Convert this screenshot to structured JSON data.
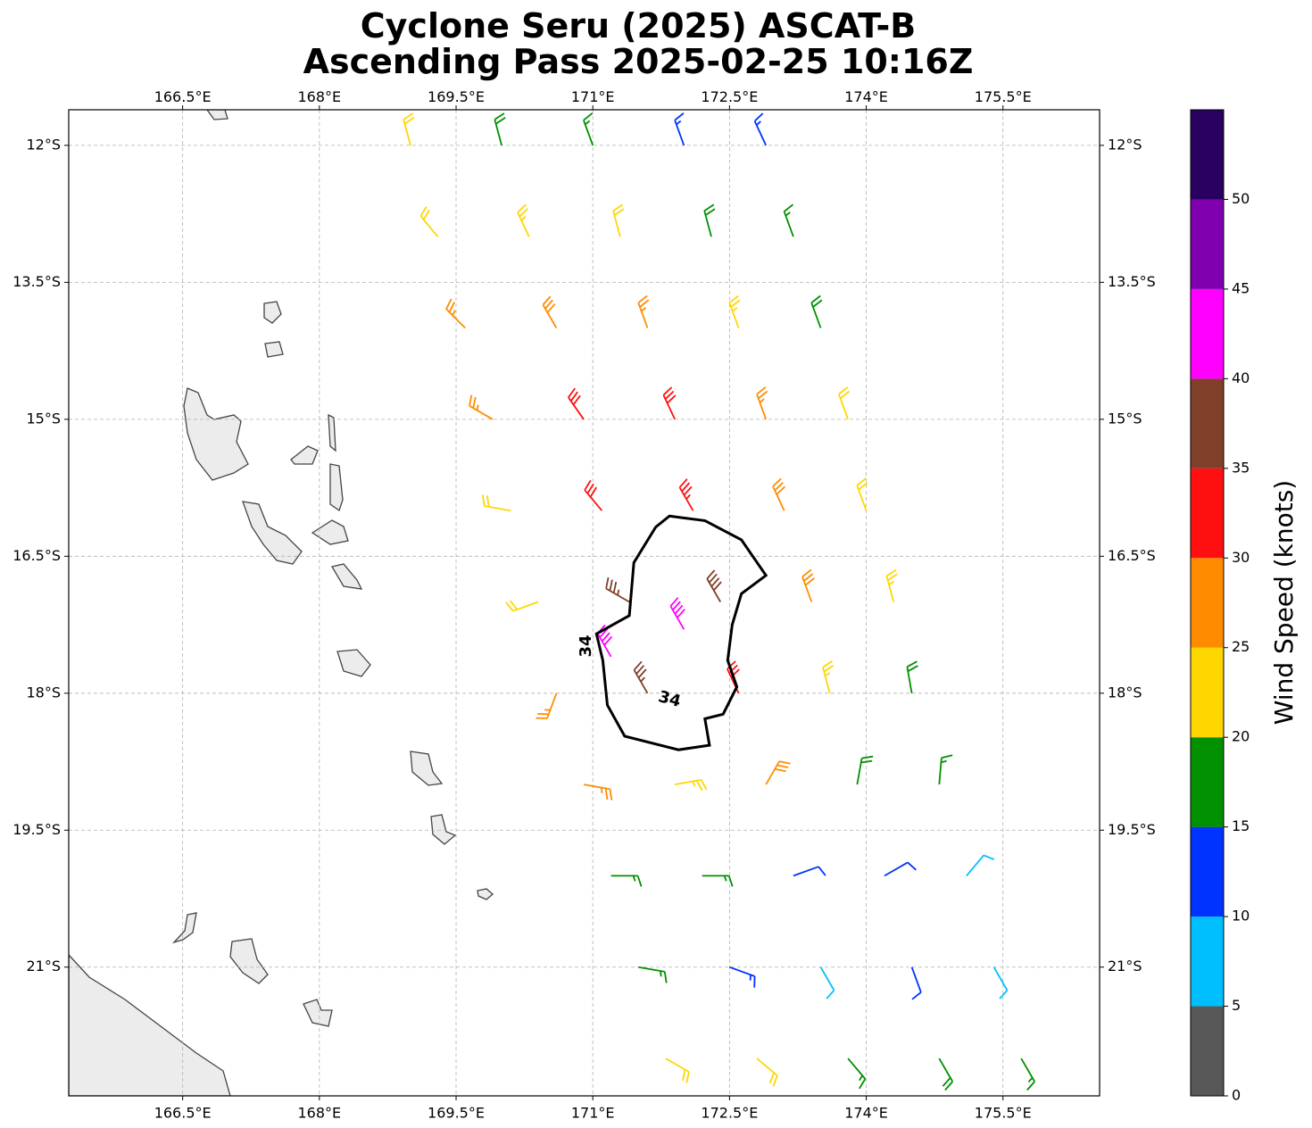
{
  "chart_data": {
    "type": "barbs",
    "title": "Cyclone Seru (2025) ASCAT-B",
    "subtitle": "Ascending Pass 2025-02-25 10:16Z",
    "xlim": [
      165.25,
      176.56
    ],
    "ylim": [
      -22.41,
      -11.61
    ],
    "grid": true,
    "xticks": [
      {
        "value": 166.5,
        "label": "166.5°E"
      },
      {
        "value": 168,
        "label": "168°E"
      },
      {
        "value": 169.5,
        "label": "169.5°E"
      },
      {
        "value": 171,
        "label": "171°E"
      },
      {
        "value": 172.5,
        "label": "172.5°E"
      },
      {
        "value": 174,
        "label": "174°E"
      },
      {
        "value": 175.5,
        "label": "175.5°E"
      }
    ],
    "yticks": [
      {
        "value": -12,
        "label": "12°S"
      },
      {
        "value": -13.5,
        "label": "13.5°S"
      },
      {
        "value": -15,
        "label": "15°S"
      },
      {
        "value": -16.5,
        "label": "16.5°S"
      },
      {
        "value": -18,
        "label": "18°S"
      },
      {
        "value": -19.5,
        "label": "19.5°S"
      },
      {
        "value": -21,
        "label": "21°S"
      }
    ],
    "barbs": {
      "lon": [
        169.0,
        170.0,
        171.0,
        172.0,
        172.9,
        169.3,
        170.3,
        171.3,
        172.3,
        173.2,
        169.6,
        170.6,
        171.6,
        172.6,
        173.5,
        169.9,
        170.9,
        171.9,
        172.9,
        173.8,
        170.1,
        171.1,
        172.1,
        173.1,
        174.0,
        170.4,
        171.4,
        172.4,
        173.4,
        174.3,
        170.6,
        171.6,
        172.6,
        173.6,
        174.5,
        170.9,
        171.9,
        172.9,
        173.9,
        174.8,
        171.2,
        172.2,
        173.2,
        174.2,
        175.1,
        171.5,
        172.5,
        173.5,
        174.5,
        175.4,
        171.8,
        172.8,
        173.8,
        174.8,
        175.7,
        171.2,
        172.0
      ],
      "lat": [
        -12,
        -12,
        -12,
        -12,
        -12,
        -13,
        -13,
        -13,
        -13,
        -13,
        -14,
        -14,
        -14,
        -14,
        -14,
        -15,
        -15,
        -15,
        -15,
        -15,
        -16,
        -16,
        -16,
        -16,
        -16,
        -17,
        -17,
        -17,
        -17,
        -17,
        -18,
        -18,
        -18,
        -18,
        -18,
        -19,
        -19,
        -19,
        -19,
        -19,
        -20,
        -20,
        -20,
        -20,
        -20,
        -21,
        -21,
        -21,
        -21,
        -21,
        -22,
        -22,
        -22,
        -22,
        -22,
        -17.6,
        -17.3
      ],
      "speed": [
        20,
        18,
        17,
        14,
        13,
        22,
        24,
        21,
        18,
        17,
        27,
        28,
        26,
        23,
        18,
        27,
        32,
        30,
        25,
        22,
        20,
        32,
        34,
        28,
        22,
        21,
        35,
        38,
        29,
        23,
        27,
        36,
        32,
        24,
        19,
        27,
        24,
        29,
        19,
        17,
        17,
        16,
        12,
        11,
        8,
        16,
        13,
        9,
        12,
        8,
        22,
        21,
        17,
        18,
        17,
        42,
        41
      ],
      "direction": [
        345,
        345,
        340,
        340,
        335,
        320,
        335,
        345,
        345,
        340,
        315,
        330,
        340,
        340,
        340,
        300,
        325,
        335,
        340,
        340,
        280,
        320,
        330,
        335,
        340,
        250,
        300,
        330,
        340,
        345,
        200,
        330,
        335,
        345,
        350,
        100,
        80,
        30,
        10,
        5,
        90,
        90,
        70,
        60,
        40,
        100,
        110,
        150,
        160,
        150,
        120,
        130,
        140,
        150,
        150,
        330,
        330
      ]
    },
    "contour": {
      "level": 34,
      "color": "#000000",
      "lon": [
        171.84,
        172.23,
        172.63,
        172.9,
        172.63,
        172.53,
        172.48,
        172.58,
        172.43,
        172.23,
        172.28,
        171.94,
        171.35,
        171.16,
        171.11,
        171.04,
        171.4,
        171.45,
        171.69
      ],
      "lat": [
        -16.06,
        -16.11,
        -16.32,
        -16.71,
        -16.91,
        -17.25,
        -17.64,
        -17.93,
        -18.23,
        -18.28,
        -18.57,
        -18.62,
        -18.47,
        -18.13,
        -17.64,
        -17.35,
        -17.15,
        -16.57,
        -16.18
      ]
    },
    "colorbar": {
      "label": "Wind Speed (knots)",
      "lim": [
        0,
        55
      ],
      "levels": [
        0,
        5,
        10,
        15,
        20,
        25,
        30,
        35,
        40,
        45,
        50
      ],
      "colors": [
        "#585858",
        "#00bfff",
        "#0033ff",
        "#009000",
        "#ffd700",
        "#ff8c00",
        "#ff1010",
        "#7f3f28",
        "#ff00ff",
        "#8000b0",
        "#2a0060"
      ],
      "ticks": [
        0,
        5,
        10,
        15,
        20,
        25,
        30,
        35,
        40,
        45,
        50
      ]
    }
  }
}
